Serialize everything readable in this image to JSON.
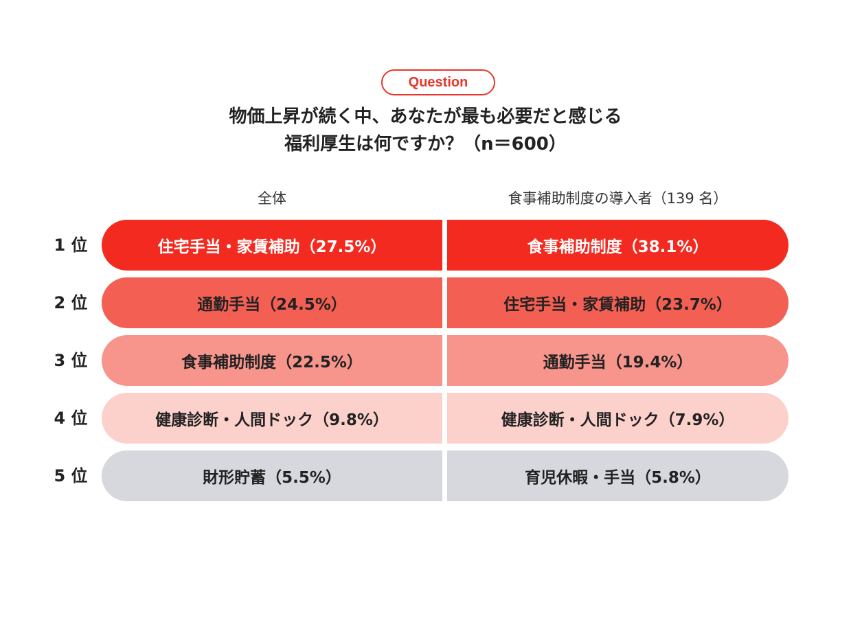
{
  "badge": "Question",
  "title_lines": [
    "物価上昇が続く中、あなたが最も必要だと感じる",
    "福利厚生は何ですか？（n＝600）"
  ],
  "colors": {
    "rank1": "#f22a1f",
    "rank2": "#f45f53",
    "rank3": "#f7958c",
    "rank4": "#fcd1cc",
    "rank5": "#d6d8dd",
    "accent": "#e8372a"
  },
  "chart_data": {
    "type": "table",
    "columns": [
      "全体",
      "食事補助制度の導入者（139 名）"
    ],
    "rows": [
      {
        "rank": "1 位",
        "overall": {
          "label": "住宅手当・家賃補助（27.5%）",
          "item": "住宅手当・家賃補助",
          "value": 27.5
        },
        "adopters": {
          "label": "食事補助制度（38.1%）",
          "item": "食事補助制度",
          "value": 38.1
        }
      },
      {
        "rank": "2 位",
        "overall": {
          "label": "通勤手当（24.5%）",
          "item": "通勤手当",
          "value": 24.5
        },
        "adopters": {
          "label": "住宅手当・家賃補助（23.7%）",
          "item": "住宅手当・家賃補助",
          "value": 23.7
        }
      },
      {
        "rank": "3 位",
        "overall": {
          "label": "食事補助制度（22.5%）",
          "item": "食事補助制度",
          "value": 22.5
        },
        "adopters": {
          "label": "通勤手当（19.4%）",
          "item": "通勤手当",
          "value": 19.4
        }
      },
      {
        "rank": "4 位",
        "overall": {
          "label": "健康診断・人間ドック（9.8%）",
          "item": "健康診断・人間ドック",
          "value": 9.8
        },
        "adopters": {
          "label": "健康診断・人間ドック（7.9%）",
          "item": "健康診断・人間ドック",
          "value": 7.9
        }
      },
      {
        "rank": "5 位",
        "overall": {
          "label": "財形貯蓄（5.5%）",
          "item": "財形貯蓄",
          "value": 5.5
        },
        "adopters": {
          "label": "育児休暇・手当（5.8%）",
          "item": "育児休暇・手当",
          "value": 5.8
        }
      }
    ]
  }
}
